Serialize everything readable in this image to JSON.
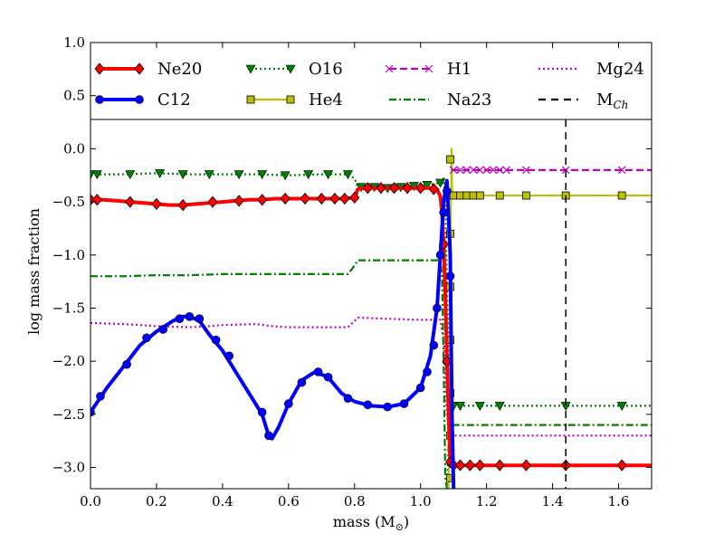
{
  "chart_data": {
    "type": "line",
    "xlabel": "mass (M",
    "xlabel_sub": "⊙",
    "xlabel_close": ")",
    "ylabel": "log mass fraction",
    "xlim": [
      0.0,
      1.7
    ],
    "ylim": [
      -3.2,
      1.0
    ],
    "main_ylim": [
      -3.2,
      0.35
    ],
    "x_ticks": [
      0.0,
      0.2,
      0.4,
      0.6,
      0.8,
      1.0,
      1.2,
      1.4,
      1.6
    ],
    "x_tick_labels": [
      "0.0",
      "0.2",
      "0.4",
      "0.6",
      "0.8",
      "1.0",
      "1.2",
      "1.4",
      "1.6"
    ],
    "y_ticks": [
      0.0,
      -0.5,
      -1.0,
      -1.5,
      -2.0,
      -2.5,
      -3.0
    ],
    "y_tick_labels": [
      "0.0",
      "−0.5",
      "−1.0",
      "−1.5",
      "−2.0",
      "−2.5",
      "−3.0"
    ],
    "legend_ticks": [
      1.0,
      0.5
    ],
    "legend_tick_labels": [
      "1.0",
      "0.5"
    ],
    "legend_columns": 4,
    "series": [
      {
        "name": "Ne20",
        "color": "#ff0000",
        "marker": "diamond",
        "style": "solid",
        "x": [
          0.0,
          0.04,
          0.08,
          0.12,
          0.16,
          0.2,
          0.24,
          0.28,
          0.32,
          0.36,
          0.4,
          0.44,
          0.48,
          0.52,
          0.56,
          0.6,
          0.64,
          0.68,
          0.72,
          0.76,
          0.8,
          0.81,
          0.83,
          0.86,
          0.9,
          0.95,
          1.0,
          1.03,
          1.05,
          1.06,
          1.065,
          1.07,
          1.075,
          1.08,
          1.085,
          1.09,
          1.1,
          1.14,
          1.2,
          1.3,
          1.44,
          1.6,
          1.7
        ],
        "y": [
          -0.48,
          -0.48,
          -0.49,
          -0.5,
          -0.51,
          -0.52,
          -0.53,
          -0.53,
          -0.52,
          -0.51,
          -0.5,
          -0.49,
          -0.48,
          -0.48,
          -0.47,
          -0.47,
          -0.47,
          -0.47,
          -0.47,
          -0.47,
          -0.46,
          -0.38,
          -0.37,
          -0.37,
          -0.37,
          -0.37,
          -0.37,
          -0.37,
          -0.38,
          -0.45,
          -0.6,
          -0.9,
          -1.4,
          -2.0,
          -2.5,
          -2.95,
          -2.98,
          -2.98,
          -2.98,
          -2.98,
          -2.98,
          -2.98,
          -2.98
        ],
        "markers_x": [
          0.0,
          0.02,
          0.12,
          0.2,
          0.28,
          0.37,
          0.45,
          0.52,
          0.59,
          0.65,
          0.7,
          0.74,
          0.77,
          0.8,
          0.84,
          0.88,
          0.92,
          0.96,
          1.0,
          1.04,
          1.07,
          1.08,
          1.09,
          1.1,
          1.12,
          1.15,
          1.18,
          1.24,
          1.32,
          1.44,
          1.61
        ],
        "markers_y": [
          -0.48,
          -0.48,
          -0.5,
          -0.52,
          -0.53,
          -0.5,
          -0.49,
          -0.48,
          -0.47,
          -0.47,
          -0.47,
          -0.47,
          -0.47,
          -0.46,
          -0.37,
          -0.37,
          -0.37,
          -0.37,
          -0.37,
          -0.38,
          -0.9,
          -2.0,
          -2.95,
          -2.98,
          -2.98,
          -2.98,
          -2.98,
          -2.98,
          -2.98,
          -2.98,
          -2.98
        ]
      },
      {
        "name": "C12",
        "color": "#0000ff",
        "marker": "circle",
        "style": "solid",
        "x": [
          0.0,
          0.05,
          0.1,
          0.15,
          0.2,
          0.25,
          0.28,
          0.3,
          0.33,
          0.36,
          0.4,
          0.44,
          0.48,
          0.52,
          0.54,
          0.55,
          0.57,
          0.6,
          0.64,
          0.68,
          0.72,
          0.76,
          0.8,
          0.85,
          0.9,
          0.95,
          1.0,
          1.03,
          1.05,
          1.06,
          1.07,
          1.08,
          1.09,
          1.095,
          1.1
        ],
        "y": [
          -2.48,
          -2.25,
          -2.05,
          -1.85,
          -1.72,
          -1.62,
          -1.58,
          -1.58,
          -1.62,
          -1.75,
          -1.9,
          -2.1,
          -2.3,
          -2.5,
          -2.7,
          -2.73,
          -2.62,
          -2.4,
          -2.18,
          -2.1,
          -2.15,
          -2.3,
          -2.38,
          -2.42,
          -2.43,
          -2.4,
          -2.25,
          -1.95,
          -1.5,
          -1.0,
          -0.5,
          -0.3,
          -1.0,
          -2.5,
          -3.2
        ],
        "markers_x": [
          0.0,
          0.03,
          0.11,
          0.17,
          0.22,
          0.27,
          0.3,
          0.33,
          0.38,
          0.42,
          0.52,
          0.54,
          0.6,
          0.64,
          0.69,
          0.72,
          0.78,
          0.84,
          0.9,
          0.95,
          1.0,
          1.02,
          1.04,
          1.05,
          1.06,
          1.07,
          1.08,
          1.09
        ],
        "markers_y": [
          -2.48,
          -2.33,
          -2.03,
          -1.78,
          -1.7,
          -1.6,
          -1.58,
          -1.6,
          -1.8,
          -1.95,
          -2.48,
          -2.7,
          -2.4,
          -2.2,
          -2.1,
          -2.15,
          -2.35,
          -2.41,
          -2.43,
          -2.4,
          -2.25,
          -2.1,
          -1.85,
          -1.5,
          -1.0,
          -0.6,
          -0.4,
          -1.2
        ]
      },
      {
        "name": "O16",
        "color": "#007f00",
        "marker": "triangle-down",
        "style": "dotted",
        "x": [
          0.0,
          0.1,
          0.2,
          0.3,
          0.4,
          0.5,
          0.6,
          0.7,
          0.78,
          0.8,
          0.81,
          0.83,
          0.9,
          1.0,
          1.06,
          1.07,
          1.075,
          1.08,
          1.09,
          1.1,
          1.2,
          1.4,
          1.6,
          1.7
        ],
        "y": [
          -0.24,
          -0.24,
          -0.23,
          -0.24,
          -0.24,
          -0.24,
          -0.25,
          -0.24,
          -0.24,
          -0.28,
          -0.36,
          -0.36,
          -0.37,
          -0.35,
          -0.32,
          -0.28,
          -0.5,
          -1.3,
          -2.4,
          -2.42,
          -2.42,
          -2.42,
          -2.42,
          -2.42
        ],
        "markers_x": [
          0.0,
          0.02,
          0.12,
          0.21,
          0.28,
          0.36,
          0.45,
          0.52,
          0.59,
          0.66,
          0.72,
          0.78,
          0.82,
          0.86,
          0.9,
          0.94,
          0.98,
          1.02,
          1.06,
          1.1,
          1.12,
          1.18,
          1.24,
          1.44,
          1.61
        ],
        "markers_y": [
          -0.24,
          -0.24,
          -0.24,
          -0.23,
          -0.24,
          -0.24,
          -0.24,
          -0.24,
          -0.25,
          -0.24,
          -0.24,
          -0.24,
          -0.36,
          -0.36,
          -0.37,
          -0.36,
          -0.35,
          -0.34,
          -0.32,
          -2.42,
          -2.42,
          -2.42,
          -2.42,
          -2.42,
          -2.42
        ]
      },
      {
        "name": "He4",
        "color": "#bfbf00",
        "marker": "square",
        "style": "solid",
        "x": [
          1.085,
          1.088,
          1.09,
          1.092,
          1.094,
          1.096,
          1.1,
          1.2,
          1.4,
          1.6,
          1.7
        ],
        "y": [
          -3.2,
          -2.5,
          -1.5,
          -0.5,
          0.0,
          -0.44,
          -0.44,
          -0.44,
          -0.44,
          -0.44,
          -0.44
        ],
        "markers_x": [
          1.09,
          1.09,
          1.09,
          1.09,
          1.09,
          1.09,
          1.09,
          1.1,
          1.12,
          1.14,
          1.16,
          1.18,
          1.24,
          1.32,
          1.44,
          1.61
        ],
        "markers_y": [
          -3.1,
          -2.7,
          -2.3,
          -1.8,
          -1.3,
          -0.8,
          -0.1,
          -0.44,
          -0.44,
          -0.44,
          -0.44,
          -0.44,
          -0.44,
          -0.44,
          -0.44,
          -0.44
        ]
      },
      {
        "name": "Na23",
        "color": "#007f00",
        "marker": "",
        "style": "dashdot",
        "x": [
          0.0,
          0.1,
          0.2,
          0.3,
          0.4,
          0.5,
          0.6,
          0.7,
          0.78,
          0.8,
          0.81,
          0.9,
          1.0,
          1.06,
          1.065,
          1.07,
          1.075,
          1.08,
          1.085,
          1.09,
          1.1,
          1.7
        ],
        "y": [
          -1.2,
          -1.2,
          -1.19,
          -1.19,
          -1.18,
          -1.18,
          -1.18,
          -1.18,
          -1.18,
          -1.1,
          -1.05,
          -1.05,
          -1.05,
          -1.05,
          -1.2,
          -2.0,
          -3.1,
          -3.2,
          -2.8,
          -2.6,
          -2.6,
          -2.6
        ]
      },
      {
        "name": "H1",
        "color": "#bf00bf",
        "marker": "x",
        "style": "dashed",
        "x": [
          1.094,
          1.1,
          1.2,
          1.4,
          1.6,
          1.7
        ],
        "y": [
          -0.2,
          -0.2,
          -0.2,
          -0.2,
          -0.2,
          -0.2
        ],
        "markers_x": [
          1.1,
          1.12,
          1.14,
          1.16,
          1.18,
          1.2,
          1.22,
          1.24,
          1.26,
          1.32,
          1.44,
          1.61
        ],
        "markers_y": [
          -0.2,
          -0.2,
          -0.2,
          -0.2,
          -0.2,
          -0.2,
          -0.2,
          -0.2,
          -0.2,
          -0.2,
          -0.2,
          -0.2
        ]
      },
      {
        "name": "Mg24",
        "color": "#bf00bf",
        "marker": "",
        "style": "dotted",
        "x": [
          0.0,
          0.1,
          0.2,
          0.3,
          0.36,
          0.4,
          0.5,
          0.55,
          0.6,
          0.7,
          0.78,
          0.8,
          0.81,
          0.9,
          1.0,
          1.06,
          1.07,
          1.08,
          1.09,
          1.1,
          1.7
        ],
        "y": [
          -1.64,
          -1.65,
          -1.67,
          -1.68,
          -1.67,
          -1.66,
          -1.65,
          -1.67,
          -1.68,
          -1.68,
          -1.68,
          -1.62,
          -1.59,
          -1.6,
          -1.61,
          -1.61,
          -1.8,
          -2.5,
          -2.7,
          -2.7,
          -2.7
        ]
      },
      {
        "name": "M",
        "name_sub": "Ch",
        "color": "#000000",
        "marker": "",
        "style": "vline-dashed",
        "x_value": 1.44
      }
    ]
  }
}
